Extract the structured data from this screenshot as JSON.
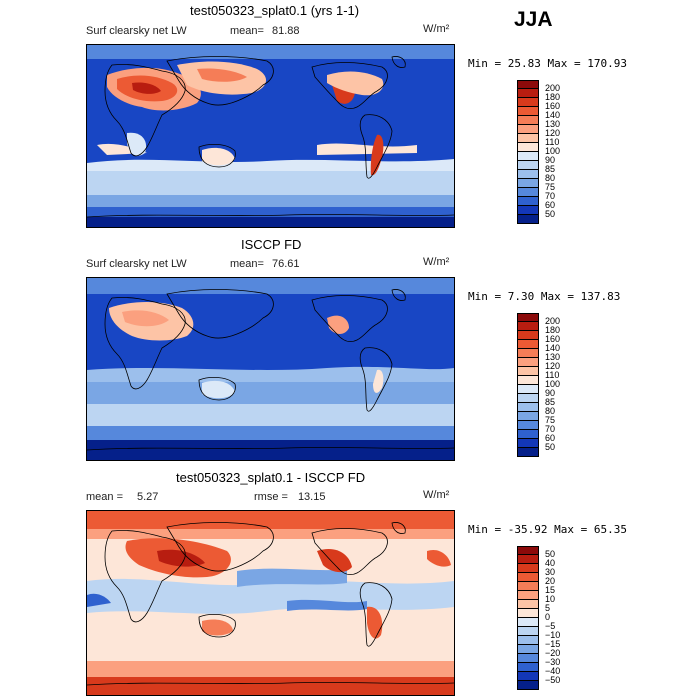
{
  "season": "JJA",
  "chart_data": [
    {
      "type": "heatmap",
      "title": "test050323_splat0.1 (yrs 1-1)",
      "field": "Surf clearsky net LW",
      "units": "W/m²",
      "stat_label": "mean=",
      "stat_value": "81.88",
      "min_label": "Min =",
      "min_value": "25.83",
      "max_label": "Max =",
      "max_value": "170.93",
      "levels": [
        "200",
        "180",
        "160",
        "140",
        "130",
        "120",
        "110",
        "100",
        "90",
        "85",
        "80",
        "75",
        "70",
        "60",
        "50"
      ],
      "colors": [
        "#8c0a0a",
        "#b81d10",
        "#d83a1c",
        "#ec5a34",
        "#f57d57",
        "#fba07f",
        "#fdc4a6",
        "#fde6d8",
        "#dce9f8",
        "#bcd5f2",
        "#9cbfec",
        "#7aa6e4",
        "#5688dc",
        "#2f61cf",
        "#1337b8",
        "#05208a"
      ]
    },
    {
      "type": "heatmap",
      "title": "ISCCP FD",
      "field": "Surf clearsky net LW",
      "units": "W/m²",
      "stat_label": "mean=",
      "stat_value": "76.61",
      "min_label": "Min =",
      "min_value": "7.30",
      "max_label": "Max =",
      "max_value": "137.83",
      "levels": [
        "200",
        "180",
        "160",
        "140",
        "130",
        "120",
        "110",
        "100",
        "90",
        "85",
        "80",
        "75",
        "70",
        "60",
        "50"
      ],
      "colors": [
        "#8c0a0a",
        "#b81d10",
        "#d83a1c",
        "#ec5a34",
        "#f57d57",
        "#fba07f",
        "#fdc4a6",
        "#fde6d8",
        "#dce9f8",
        "#bcd5f2",
        "#9cbfec",
        "#7aa6e4",
        "#5688dc",
        "#2f61cf",
        "#1337b8",
        "#05208a"
      ]
    },
    {
      "type": "heatmap",
      "title": "test050323_splat0.1 - ISCCP FD",
      "units": "W/m²",
      "stat_label": "mean =",
      "stat_value": "5.27",
      "rmse_label": "rmse =",
      "rmse_value": "13.15",
      "min_label": "Min =",
      "min_value": "-35.92",
      "max_label": "Max =",
      "max_value": "65.35",
      "levels": [
        "50",
        "40",
        "30",
        "20",
        "15",
        "10",
        "5",
        "0",
        "−5",
        "−10",
        "−15",
        "−20",
        "−30",
        "−40",
        "−50"
      ],
      "colors": [
        "#8c0a0a",
        "#b81d10",
        "#d83a1c",
        "#ec5a34",
        "#f57d57",
        "#fba07f",
        "#fdc4a6",
        "#fde6d8",
        "#dce9f8",
        "#bcd5f2",
        "#9cbfec",
        "#7aa6e4",
        "#5688dc",
        "#2f61cf",
        "#1337b8",
        "#05208a"
      ]
    }
  ]
}
